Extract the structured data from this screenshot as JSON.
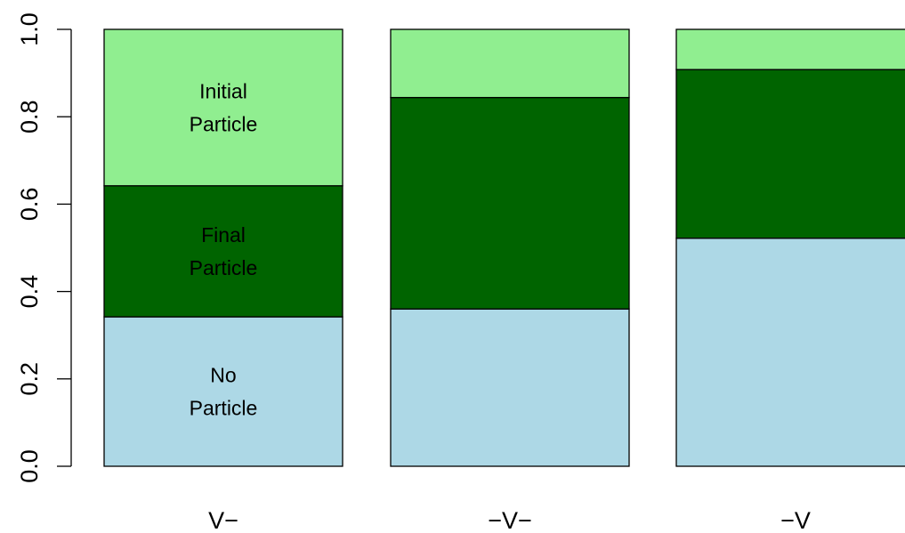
{
  "chart_data": {
    "type": "bar",
    "stacked": true,
    "categories": [
      "V−",
      "−V−",
      "−V"
    ],
    "series": [
      {
        "key": "no_particle",
        "values": [
          0.342,
          0.36,
          0.522
        ],
        "color": "#ADD8E6",
        "label_lines": [
          "No",
          "Particle"
        ]
      },
      {
        "key": "final_particle",
        "values": [
          0.3,
          0.484,
          0.386
        ],
        "color": "#006400",
        "label_lines": [
          "Final",
          "Particle"
        ]
      },
      {
        "key": "initial_particle",
        "values": [
          0.358,
          0.156,
          0.092
        ],
        "color": "#90EE90",
        "label_lines": [
          "Initial",
          "Particle"
        ]
      }
    ],
    "segment_labels_on_category": 0,
    "ylim": [
      0,
      1
    ],
    "yticks": [
      {
        "value": 0.0,
        "label": "0.0"
      },
      {
        "value": 0.2,
        "label": "0.2"
      },
      {
        "value": 0.4,
        "label": "0.4"
      },
      {
        "value": 0.6,
        "label": "0.6"
      },
      {
        "value": 0.8,
        "label": "0.8"
      },
      {
        "value": 1.0,
        "label": "1.0"
      }
    ],
    "title": "",
    "xlabel": "",
    "ylabel": "",
    "grid": false,
    "legend": "none"
  }
}
